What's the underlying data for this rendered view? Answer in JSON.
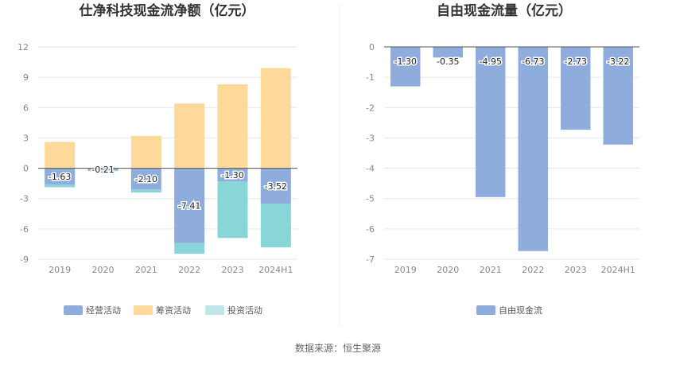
{
  "footer": {
    "source": "数据来源：恒生聚源"
  },
  "colors": {
    "operating": "#8eaddc",
    "financing": "#ffd99a",
    "investing": "#bfe6e8",
    "investing_bar": "#88d6d8",
    "fcf": "#8eaddc",
    "grid": "#e6e6e6",
    "axis": "#555555"
  },
  "chart_data": [
    {
      "type": "bar",
      "stacked": true,
      "title": "仕净科技现金流净额（亿元）",
      "categories": [
        "2019",
        "2020",
        "2021",
        "2022",
        "2023",
        "2024H1"
      ],
      "ylim": [
        -9,
        12
      ],
      "yticks": [
        -9,
        -6,
        -3,
        0,
        3,
        6,
        9,
        12
      ],
      "series": [
        {
          "name": "经营活动",
          "values": [
            -1.63,
            -0.21,
            -2.1,
            -7.41,
            -1.3,
            -3.52
          ],
          "labels": [
            "-1.63",
            "-0.21",
            "-2.10",
            "-7.41",
            "-1.30",
            "-3.52"
          ]
        },
        {
          "name": "筹资活动",
          "values": [
            2.6,
            0.05,
            3.2,
            6.4,
            8.3,
            9.9
          ]
        },
        {
          "name": "投资活动",
          "values": [
            -0.25,
            -0.05,
            -0.3,
            -1.05,
            -5.6,
            -4.3
          ]
        }
      ],
      "legend": "bottom",
      "grid": true
    },
    {
      "type": "bar",
      "title": "自由现金流量（亿元）",
      "categories": [
        "2019",
        "2020",
        "2021",
        "2022",
        "2023",
        "2024H1"
      ],
      "ylim": [
        -7,
        0
      ],
      "yticks": [
        -7,
        -6,
        -5,
        -4,
        -3,
        -2,
        -1,
        0
      ],
      "series": [
        {
          "name": "自由现金流",
          "values": [
            -1.3,
            -0.35,
            -4.95,
            -6.73,
            -2.73,
            -3.22
          ],
          "labels": [
            "-1.30",
            "-0.35",
            "-4.95",
            "-6.73",
            "-2.73",
            "-3.22"
          ]
        }
      ],
      "legend": "bottom",
      "grid": true
    }
  ]
}
